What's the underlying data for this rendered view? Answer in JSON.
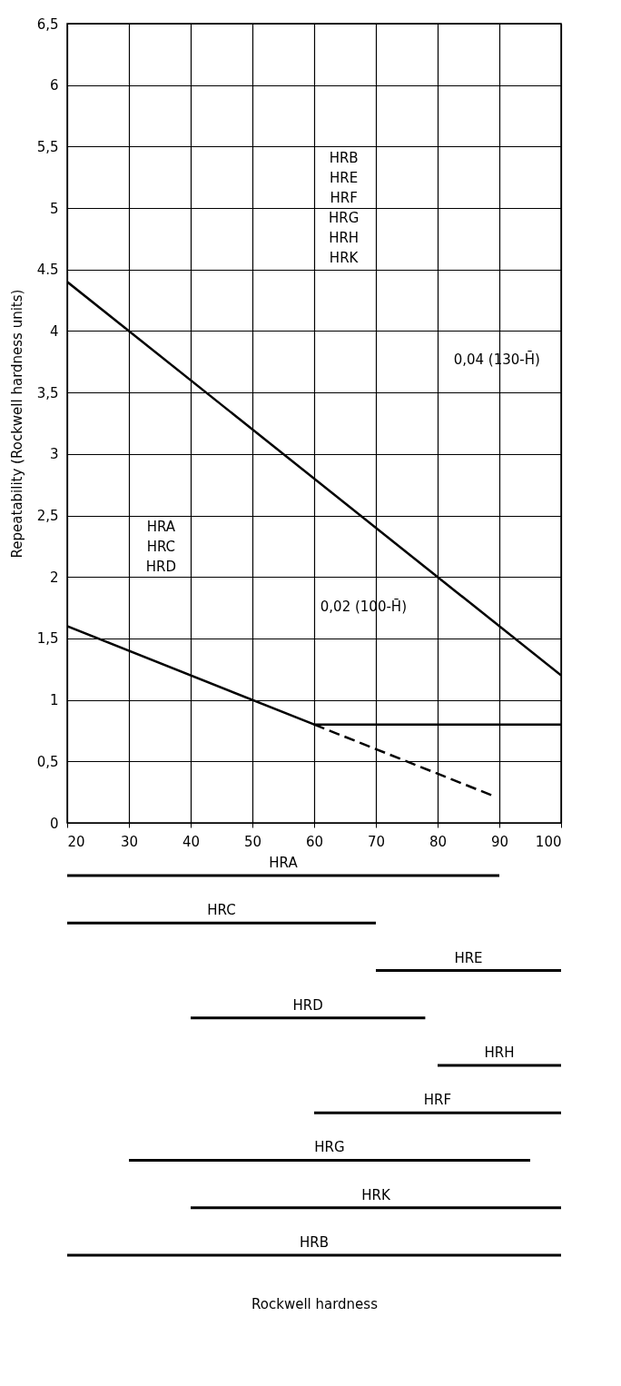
{
  "chart_data": [
    {
      "type": "line",
      "ylabel": "Repeatability (Rockwell hardness units)",
      "xlim": [
        20,
        100
      ],
      "xticks": [
        20,
        30,
        40,
        50,
        60,
        70,
        80,
        90,
        100
      ],
      "ylim": [
        0,
        6.5
      ],
      "yticks": [
        0,
        {
          "value": 0.5,
          "label": "0,5"
        },
        1,
        {
          "value": 1.5,
          "label": "1,5"
        },
        2,
        {
          "value": 2.5,
          "label": "2,5"
        },
        3,
        {
          "value": 3.5,
          "label": "3,5"
        },
        4,
        {
          "value": 4.5,
          "label": "4.5"
        },
        5,
        {
          "value": 5.5,
          "label": "5,5"
        },
        6,
        {
          "value": 6.5,
          "label": "6,5"
        }
      ],
      "grid": true,
      "marker": "none",
      "tick_labels": "y",
      "series": [
        {
          "color": "#000000",
          "x": [
            20,
            100
          ],
          "values": [
            4.4,
            1.2
          ],
          "line_style": "solid"
        },
        {
          "color": "#000000",
          "x": [
            20,
            60,
            100
          ],
          "values": [
            1.6,
            0.8,
            0.8
          ],
          "line_style": "solid"
        },
        {
          "color": "#000000",
          "x": [
            60,
            89
          ],
          "values": [
            0.8,
            0.22
          ],
          "line_style": "dashed"
        }
      ],
      "annotations": [
        "HRB\nHRE\nHRF\nHRG\nHRH\nHRK",
        "HRA\nHRC\nHRD",
        "0,04 (130-H̄)",
        "0,02 (100-H̄)"
      ]
    },
    {
      "type": "bar",
      "orientation": "horizontal",
      "xlabel": "Rockwell hardness",
      "xlim": [
        20,
        100
      ],
      "xticks": [
        20,
        30,
        40,
        50,
        60,
        70,
        80,
        90,
        100
      ],
      "categories": [
        null,
        null,
        null,
        null,
        null,
        null,
        null,
        null,
        null
      ],
      "series": [
        {
          "color": "#000000",
          "base": [
            20,
            20,
            70,
            40,
            80,
            60,
            30,
            40,
            20
          ],
          "values": [
            70,
            50,
            30,
            38,
            20,
            40,
            65,
            60,
            80
          ],
          "value_labels": [
            "HRA",
            "HRC",
            "HRE",
            "HRD",
            "HRH",
            "HRF",
            "HRG",
            "HRK",
            "HRB"
          ]
        }
      ]
    }
  ]
}
